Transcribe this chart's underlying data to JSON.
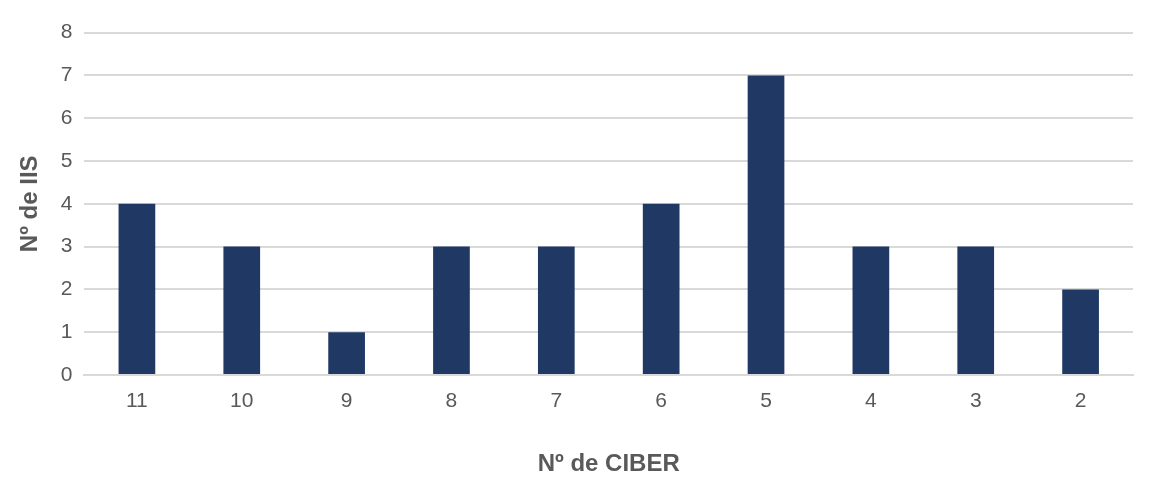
{
  "chart_data": {
    "type": "bar",
    "xlabel": "Nº de CIBER",
    "ylabel": "Nº de IIS",
    "categories": [
      "11",
      "10",
      "9",
      "8",
      "7",
      "6",
      "5",
      "4",
      "3",
      "2"
    ],
    "values": [
      4,
      3,
      1,
      3,
      3,
      4,
      7,
      3,
      3,
      2
    ],
    "color": "#203864",
    "ylim": [
      0,
      8
    ],
    "yticks": [
      0,
      1,
      2,
      3,
      4,
      5,
      6,
      7,
      8
    ],
    "grid": "y"
  }
}
